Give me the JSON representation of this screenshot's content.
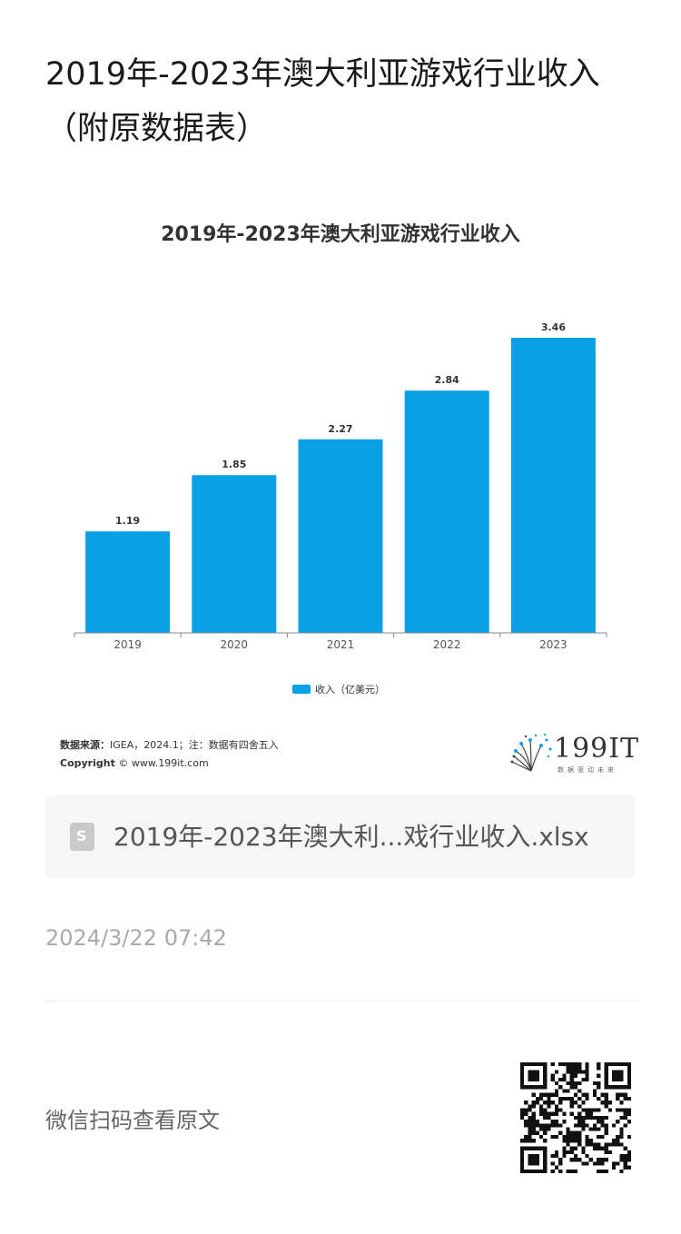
{
  "page": {
    "title": "2019年-2023年澳大利亚游戏行业收入（附原数据表）"
  },
  "chart_data": {
    "type": "bar",
    "title": "2019年-2023年澳大利亚游戏行业收入",
    "categories": [
      "2019",
      "2020",
      "2021",
      "2022",
      "2023"
    ],
    "series": [
      {
        "name": "收入（亿美元）",
        "values": [
          1.19,
          1.85,
          2.27,
          2.84,
          3.46
        ]
      }
    ],
    "data_labels": [
      "1.19",
      "1.85",
      "2.27",
      "2.84",
      "3.46"
    ],
    "ylim": [
      0,
      3.46
    ],
    "grid": false,
    "legend_position": "bottom",
    "bar_color": "#0aa0e6"
  },
  "chart_footer": {
    "source_label": "数据来源：",
    "source_text": "IGEA，2024.1；注：数据有四舍五入",
    "copyright_label": "Copyright",
    "copyright_text": " © www.199it.com",
    "logo_text": "199IT",
    "logo_tagline": "数据驱动未来"
  },
  "attachment": {
    "icon": "spreadsheet-file-icon",
    "icon_glyph": "S",
    "file_name": "2019年-2023年澳大利...戏行业收入.xlsx"
  },
  "meta": {
    "timestamp": "2024/3/22 07:42"
  },
  "qr_section": {
    "label": "微信扫码查看原文",
    "icon": "qr-code-icon"
  }
}
